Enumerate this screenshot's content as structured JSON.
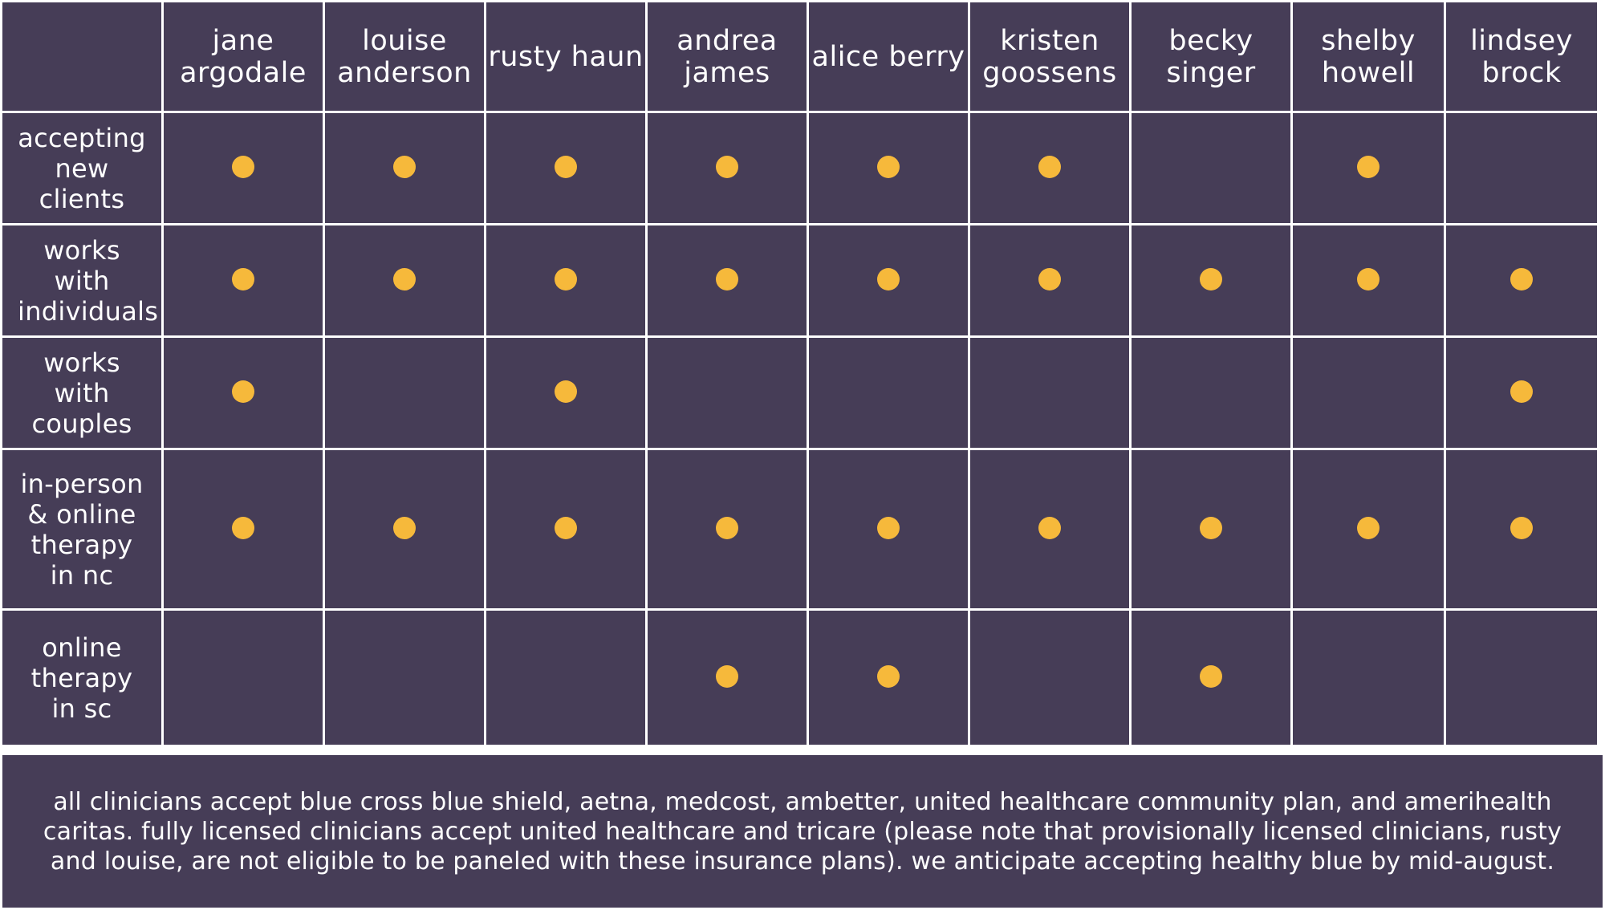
{
  "columns": [
    "jane argodale",
    "louise anderson",
    "rusty haun",
    "andrea james",
    "alice berry",
    "kristen goossens",
    "becky singer",
    "shelby howell",
    "lindsey brock"
  ],
  "rows": [
    {
      "label": "accepting new clients",
      "marks": [
        true,
        true,
        true,
        true,
        true,
        true,
        false,
        true,
        false
      ]
    },
    {
      "label": "works with individuals",
      "marks": [
        true,
        true,
        true,
        true,
        true,
        true,
        true,
        true,
        true
      ]
    },
    {
      "label": "works with couples",
      "marks": [
        true,
        false,
        true,
        false,
        false,
        false,
        false,
        false,
        true
      ]
    },
    {
      "label": "in-person & online therapy in nc",
      "marks": [
        true,
        true,
        true,
        true,
        true,
        true,
        true,
        true,
        true
      ]
    },
    {
      "label": "online therapy in sc",
      "marks": [
        false,
        false,
        false,
        true,
        true,
        false,
        true,
        false,
        false
      ]
    }
  ],
  "footer_note": "all clinicians accept blue cross blue shield, aetna, medcost, ambetter, united healthcare community plan, and amerihealth caritas. fully licensed clinicians accept united healthcare and tricare (please note that provisionally licensed clinicians, rusty and louise, are not eligible to be paneled with these insurance plans). we anticipate accepting healthy blue by mid-august.",
  "colors": {
    "cell_background": "#463d57",
    "grid_lines": "#ffffff",
    "dot": "#f6b93b",
    "text": "#ffffff"
  }
}
